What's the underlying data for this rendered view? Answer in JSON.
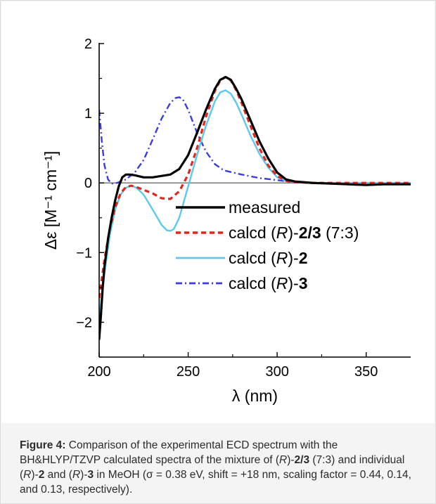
{
  "chart_data": {
    "type": "line",
    "xlabel": "λ (nm)",
    "ylabel": "Δε [M⁻¹ cm⁻¹]",
    "xlim": [
      200,
      375
    ],
    "ylim": [
      -2.5,
      2
    ],
    "x_ticks": [
      200,
      250,
      300,
      350
    ],
    "y_ticks": [
      -2,
      -1,
      0,
      1,
      2
    ],
    "x_tick_labels": [
      "200",
      "250",
      "300",
      "350"
    ],
    "y_tick_labels": [
      "−2",
      "−1",
      "0",
      "1",
      "2"
    ],
    "zero_line": true,
    "grid": false,
    "legend_position": "bottom-right",
    "series": [
      {
        "name": "measured",
        "name_parts": [
          {
            "t": "measured"
          }
        ],
        "color": "#000000",
        "style": "solid",
        "x": [
          200,
          201,
          202,
          203,
          205,
          207,
          209,
          211,
          213,
          215,
          217,
          220,
          225,
          230,
          235,
          240,
          245,
          250,
          255,
          260,
          265,
          268,
          271,
          274,
          277,
          280,
          285,
          290,
          295,
          300,
          305,
          310,
          315,
          320,
          330,
          340,
          350,
          360,
          370,
          375
        ],
        "y": [
          -2.25,
          -1.9,
          -1.5,
          -1.2,
          -0.8,
          -0.5,
          -0.25,
          -0.05,
          0.08,
          0.12,
          0.12,
          0.11,
          0.08,
          0.08,
          0.1,
          0.12,
          0.2,
          0.4,
          0.72,
          1.05,
          1.35,
          1.48,
          1.52,
          1.48,
          1.35,
          1.2,
          0.9,
          0.6,
          0.35,
          0.15,
          0.05,
          0.02,
          0.01,
          0.0,
          -0.01,
          -0.02,
          -0.03,
          -0.02,
          -0.02,
          -0.02
        ]
      },
      {
        "name": "calcd (R)-2/3 (7:3)",
        "name_parts": [
          {
            "t": "calcd ("
          },
          {
            "t": "R",
            "i": true
          },
          {
            "t": ")-"
          },
          {
            "t": "2/3",
            "b": true
          },
          {
            "t": " (7:3)"
          }
        ],
        "color": "#e3261d",
        "style": "dash",
        "x": [
          200,
          203,
          206,
          209,
          212,
          215,
          218,
          221,
          225,
          230,
          235,
          240,
          245,
          250,
          255,
          260,
          265,
          268,
          271,
          274,
          277,
          280,
          285,
          290,
          295,
          300,
          305,
          310,
          320,
          330,
          340,
          350,
          360,
          375
        ],
        "y": [
          -1.65,
          -1.1,
          -0.65,
          -0.35,
          -0.15,
          -0.06,
          -0.04,
          -0.06,
          -0.1,
          -0.15,
          -0.22,
          -0.23,
          -0.12,
          0.12,
          0.5,
          0.95,
          1.32,
          1.47,
          1.52,
          1.47,
          1.33,
          1.15,
          0.82,
          0.5,
          0.25,
          0.1,
          0.03,
          0.01,
          0.0,
          0.0,
          0.0,
          0.0,
          0.0,
          0.0
        ]
      },
      {
        "name": "calcd (R)-2",
        "name_parts": [
          {
            "t": "calcd ("
          },
          {
            "t": "R",
            "i": true
          },
          {
            "t": ")-"
          },
          {
            "t": "2",
            "b": true
          }
        ],
        "color": "#5cc8ec",
        "style": "solid",
        "x": [
          200,
          203,
          206,
          209,
          212,
          215,
          218,
          221,
          225,
          230,
          235,
          238,
          240,
          242,
          245,
          250,
          255,
          260,
          265,
          268,
          271,
          274,
          277,
          280,
          285,
          290,
          295,
          300,
          305,
          310,
          320,
          330,
          340,
          350,
          360,
          375
        ],
        "y": [
          -1.95,
          -1.3,
          -0.75,
          -0.38,
          -0.17,
          -0.07,
          -0.04,
          -0.07,
          -0.17,
          -0.38,
          -0.6,
          -0.68,
          -0.69,
          -0.66,
          -0.5,
          -0.05,
          0.4,
          0.82,
          1.17,
          1.3,
          1.33,
          1.28,
          1.15,
          0.98,
          0.68,
          0.42,
          0.22,
          0.08,
          0.03,
          0.01,
          0.0,
          0.0,
          0.0,
          0.0,
          0.0,
          0.0
        ]
      },
      {
        "name": "calcd (R)-3",
        "name_parts": [
          {
            "t": "calcd ("
          },
          {
            "t": "R",
            "i": true
          },
          {
            "t": ")-"
          },
          {
            "t": "3",
            "b": true
          }
        ],
        "color": "#3b3be6",
        "style": "dashdot",
        "x": [
          200,
          201.5,
          203,
          205,
          207,
          210,
          215,
          220,
          225,
          230,
          235,
          240,
          243,
          245,
          247,
          250,
          255,
          260,
          265,
          270,
          275,
          280,
          290,
          300,
          310,
          320,
          330,
          350,
          375
        ],
        "y": [
          1.05,
          0.6,
          0.25,
          0.05,
          -0.01,
          0.0,
          0.05,
          0.15,
          0.33,
          0.62,
          0.92,
          1.15,
          1.22,
          1.23,
          1.2,
          1.05,
          0.72,
          0.45,
          0.27,
          0.18,
          0.15,
          0.12,
          0.07,
          0.04,
          0.01,
          0.0,
          0.0,
          0.0,
          0.0
        ]
      }
    ]
  },
  "caption": {
    "parts": [
      {
        "t": "Figure 4:",
        "b": true
      },
      {
        "t": " Comparison of the experimental ECD spectrum with the BH&HLYP/TZVP calculated spectra of the mixture of ("
      },
      {
        "t": "R",
        "i": true
      },
      {
        "t": ")-"
      },
      {
        "t": "2/3",
        "b": true
      },
      {
        "t": " (7:3) and individual ("
      },
      {
        "t": "R",
        "i": true
      },
      {
        "t": ")-"
      },
      {
        "t": "2",
        "b": true
      },
      {
        "t": " and ("
      },
      {
        "t": "R",
        "i": true
      },
      {
        "t": ")-"
      },
      {
        "t": "3",
        "b": true
      },
      {
        "t": " in MeOH (σ = 0.38 eV, shift = +18 nm, scaling factor = 0.44, 0.14, and 0.13, respectively)."
      }
    ]
  }
}
